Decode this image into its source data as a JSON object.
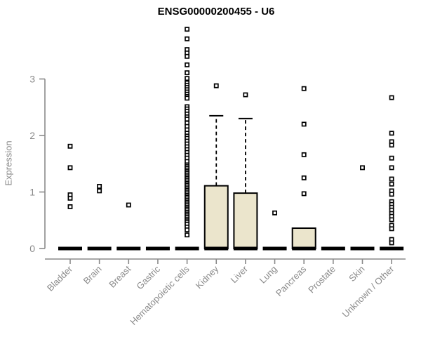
{
  "chart_data": {
    "type": "boxplot",
    "title": "ENSG00000200455 - U6",
    "ylabel": "Expression",
    "xlabel": "",
    "yticks": [
      0,
      1,
      2,
      3
    ],
    "ylim": [
      0,
      4.0
    ],
    "grid": false,
    "legend": "none",
    "categories": [
      "Bladder",
      "Brain",
      "Breast",
      "Gastric",
      "Hematopoietic cells",
      "Kidney",
      "Liver",
      "Lung",
      "Pancreas",
      "Prostate",
      "Skin",
      "Unknown / Other"
    ],
    "series": [
      {
        "name": "Bladder",
        "median": 0,
        "q1": 0,
        "q3": 0,
        "whisker_low": 0,
        "whisker_high": 0,
        "outliers": [
          1.81,
          1.43,
          0.95,
          0.89,
          0.74
        ]
      },
      {
        "name": "Brain",
        "median": 0,
        "q1": 0,
        "q3": 0,
        "whisker_low": 0,
        "whisker_high": 0,
        "outliers": [
          1.1,
          1.02
        ]
      },
      {
        "name": "Breast",
        "median": 0,
        "q1": 0,
        "q3": 0,
        "whisker_low": 0,
        "whisker_high": 0,
        "outliers": [
          0.77
        ]
      },
      {
        "name": "Gastric",
        "median": 0,
        "q1": 0,
        "q3": 0,
        "whisker_low": 0,
        "whisker_high": 0,
        "outliers": []
      },
      {
        "name": "Hematopoietic cells",
        "median": 0,
        "q1": 0,
        "q3": 0,
        "whisker_low": 0,
        "whisker_high": 0,
        "outliers": [
          3.88,
          3.71,
          3.52,
          3.46,
          3.4,
          3.25,
          3.11,
          3.01,
          2.93,
          2.89,
          2.85,
          2.81,
          2.77,
          2.73,
          2.69,
          2.66,
          2.51,
          2.47,
          2.43,
          2.38,
          2.33,
          2.29,
          2.22,
          2.16,
          2.1,
          2.04,
          1.99,
          1.95,
          1.9,
          1.85,
          1.8,
          1.75,
          1.7,
          1.65,
          1.6,
          1.54,
          1.48,
          1.45,
          1.42,
          1.39,
          1.36,
          1.33,
          1.3,
          1.27,
          1.24,
          1.21,
          1.18,
          1.15,
          1.12,
          1.09,
          1.06,
          1.03,
          1.0,
          0.97,
          0.94,
          0.91,
          0.88,
          0.85,
          0.82,
          0.79,
          0.76,
          0.73,
          0.7,
          0.67,
          0.64,
          0.61,
          0.58,
          0.55,
          0.52,
          0.49,
          0.46,
          0.43,
          0.38,
          0.33,
          0.24
        ]
      },
      {
        "name": "Kidney",
        "median": 0,
        "q1": 0,
        "q3": 1.11,
        "whisker_low": 0,
        "whisker_high": 2.35,
        "outliers": [
          2.88
        ]
      },
      {
        "name": "Liver",
        "median": 0,
        "q1": 0,
        "q3": 0.98,
        "whisker_low": 0,
        "whisker_high": 2.3,
        "outliers": [
          2.72
        ]
      },
      {
        "name": "Lung",
        "median": 0,
        "q1": 0,
        "q3": 0,
        "whisker_low": 0,
        "whisker_high": 0,
        "outliers": [
          0.63
        ]
      },
      {
        "name": "Pancreas",
        "median": 0,
        "q1": 0,
        "q3": 0.36,
        "whisker_low": 0,
        "whisker_high": 0.36,
        "outliers": [
          2.83,
          2.2,
          1.66,
          1.25,
          0.97
        ]
      },
      {
        "name": "Prostate",
        "median": 0,
        "q1": 0,
        "q3": 0,
        "whisker_low": 0,
        "whisker_high": 0,
        "outliers": []
      },
      {
        "name": "Skin",
        "median": 0,
        "q1": 0,
        "q3": 0,
        "whisker_low": 0,
        "whisker_high": 0,
        "outliers": [
          1.43
        ]
      },
      {
        "name": "Unknown / Other",
        "median": 0,
        "q1": 0,
        "q3": 0,
        "whisker_low": 0,
        "whisker_high": 0,
        "outliers": [
          2.67,
          2.04,
          1.89,
          1.83,
          1.6,
          1.43,
          1.23,
          1.14,
          1.02,
          0.96,
          0.83,
          0.78,
          0.73,
          0.68,
          0.62,
          0.57,
          0.51,
          0.41,
          0.35,
          0.16,
          0.1
        ]
      }
    ],
    "colors": {
      "box_fill": "#ebe5cc",
      "box_stroke": "#000000",
      "outlier_fill": "#ffffff",
      "outlier_stroke": "#000000",
      "axis": "#8a8a8a",
      "tick_label": "#8a8a8a",
      "title": "#000000"
    }
  }
}
